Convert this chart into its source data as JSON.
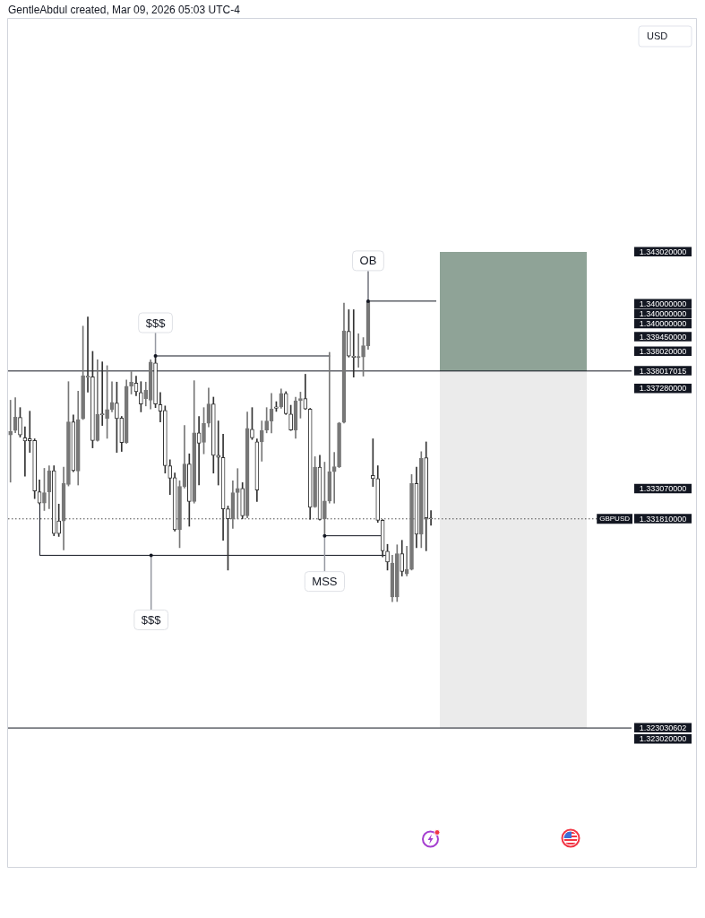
{
  "chart_data": {
    "type": "candlestick",
    "ylabel": "USD",
    "annotations": [
      "GentleAbdul created, Mar 09, 2026 05:03 UTC-4",
      "1.340000000",
      "1.340000000",
      "1.338020000",
      "1.323020000"
    ],
    "categories": [
      null,
      null,
      null,
      null,
      null,
      null,
      null,
      null,
      null,
      null,
      null,
      null,
      null,
      null,
      null,
      null,
      null,
      null,
      null,
      null,
      null,
      null,
      null,
      null,
      null,
      null,
      null,
      null,
      null,
      null,
      null,
      null,
      null,
      null,
      null,
      null,
      null,
      null,
      null,
      null,
      null,
      null,
      null,
      null,
      null,
      null,
      null,
      null,
      null,
      null,
      null,
      null,
      null,
      null,
      null,
      null,
      null,
      null,
      null,
      null,
      null,
      null,
      null,
      null,
      null,
      null,
      null,
      null,
      null,
      null,
      null,
      null,
      null,
      null,
      null,
      null,
      null,
      null,
      null,
      null,
      null,
      null,
      null,
      null,
      null,
      null,
      null,
      null,
      null,
      null,
      null,
      null,
      null,
      null,
      null,
      null,
      null,
      null,
      null,
      null,
      null,
      null,
      null,
      null,
      null,
      null,
      null,
      null,
      null,
      null,
      null,
      null,
      null,
      null,
      null,
      null,
      null,
      null,
      null,
      null,
      null,
      null,
      null,
      null,
      null,
      null,
      null,
      null,
      null
    ],
    "ohlc": [
      [
        1.33533,
        1.33679,
        1.33335,
        1.33548
      ],
      [
        1.33552,
        1.3369,
        1.33543,
        1.33608
      ],
      [
        1.33607,
        1.33648,
        1.33524,
        1.33533
      ],
      [
        1.33521,
        1.33567,
        1.3336,
        1.33508
      ],
      [
        1.33518,
        1.33633,
        1.3346,
        1.33509
      ],
      [
        1.3351,
        1.33517,
        1.33266,
        1.33298
      ],
      [
        1.33295,
        1.33344,
        1.33243,
        1.33247
      ],
      [
        1.33247,
        1.33393,
        1.33216,
        1.33291
      ],
      [
        1.33294,
        1.33404,
        1.33224,
        1.33383
      ],
      [
        1.33383,
        1.33404,
        1.3311,
        1.33119
      ],
      [
        1.33172,
        1.33243,
        1.33107,
        1.33119
      ],
      [
        1.33172,
        1.33398,
        1.33051,
        1.33329
      ],
      [
        1.33325,
        1.33757,
        1.33319,
        1.33588
      ],
      [
        1.33588,
        1.33617,
        1.33379,
        1.33384
      ],
      [
        1.33382,
        1.33717,
        1.33323,
        1.33598
      ],
      [
        1.33601,
        1.3399,
        1.33598,
        1.33782
      ],
      [
        1.3378,
        1.34028,
        1.33713,
        1.33776
      ],
      [
        1.33777,
        1.33884,
        1.33479,
        1.3351
      ],
      [
        1.3351,
        1.33849,
        1.33507,
        1.33619
      ],
      [
        1.3362,
        1.3384,
        1.33573,
        1.33618
      ],
      [
        1.33602,
        1.33824,
        1.33519,
        1.3364
      ],
      [
        1.3364,
        1.33757,
        1.3363,
        1.3367
      ],
      [
        1.33667,
        1.33755,
        1.3346,
        1.33602
      ],
      [
        1.33604,
        1.33611,
        1.33464,
        1.33501
      ],
      [
        1.33501,
        1.33764,
        1.33498,
        1.33738
      ],
      [
        1.33738,
        1.33799,
        1.33705,
        1.33755
      ],
      [
        1.33751,
        1.3378,
        1.33698,
        1.33715
      ],
      [
        1.33711,
        1.33757,
        1.3363,
        1.33663
      ],
      [
        1.33686,
        1.33755,
        1.33655,
        1.33721
      ],
      [
        1.33679,
        1.33849,
        1.33642,
        1.33839
      ],
      [
        1.33836,
        1.33865,
        1.33648,
        1.33663
      ],
      [
        1.33661,
        1.33711,
        1.33588,
        1.33633
      ],
      [
        1.33636,
        1.33655,
        1.33373,
        1.33404
      ],
      [
        1.33404,
        1.33429,
        1.33283,
        1.33352
      ],
      [
        1.33354,
        1.33374,
        1.3313,
        1.33135
      ],
      [
        1.33135,
        1.33341,
        1.3306,
        1.33317
      ],
      [
        1.33317,
        1.33573,
        1.3331,
        1.33411
      ],
      [
        1.33411,
        1.33454,
        1.3315,
        1.33254
      ],
      [
        1.33254,
        1.33761,
        1.33247,
        1.33542
      ],
      [
        1.33542,
        1.33611,
        1.33323,
        1.33498
      ],
      [
        1.33502,
        1.33648,
        1.33454,
        1.33582
      ],
      [
        1.33582,
        1.3373,
        1.33567,
        1.33663
      ],
      [
        1.33663,
        1.33692,
        1.33373,
        1.33448
      ],
      [
        1.33448,
        1.33592,
        1.33323,
        1.33439
      ],
      [
        1.33439,
        1.33536,
        1.33091,
        1.33223
      ],
      [
        1.33223,
        1.33235,
        1.32966,
        1.33181
      ],
      [
        1.33181,
        1.33341,
        1.33141,
        1.33291
      ],
      [
        1.33291,
        1.33392,
        1.33181,
        1.33309
      ],
      [
        1.33309,
        1.33333,
        1.33181,
        1.33194
      ],
      [
        1.33194,
        1.3363,
        1.33185,
        1.33561
      ],
      [
        1.33557,
        1.33648,
        1.33514,
        1.33521
      ],
      [
        1.33504,
        1.33517,
        1.33254,
        1.33302
      ],
      [
        1.33504,
        1.33592,
        1.33423,
        1.33551
      ],
      [
        1.33554,
        1.33648,
        1.33542,
        1.33592
      ],
      [
        1.33592,
        1.33708,
        1.33542,
        1.33642
      ],
      [
        1.33651,
        1.33673,
        1.33632,
        1.33645
      ],
      [
        1.33651,
        1.33726,
        1.33645,
        1.33708
      ],
      [
        1.33708,
        1.33715,
        1.33619,
        1.33623
      ],
      [
        1.33621,
        1.33658,
        1.33552,
        1.33554
      ],
      [
        1.33554,
        1.33692,
        1.33519,
        1.33677
      ],
      [
        1.33677,
        1.33713,
        1.33604,
        1.33686
      ],
      [
        1.33686,
        1.33788,
        1.3364,
        1.33642
      ],
      [
        1.33642,
        1.33645,
        1.33179,
        1.33229
      ],
      [
        1.33231,
        1.33442,
        1.33229,
        1.33398
      ],
      [
        1.33398,
        1.33448,
        1.33176,
        1.33179
      ],
      [
        1.33181,
        1.33419,
        1.3311,
        1.33256
      ],
      [
        1.33256,
        1.3388,
        1.33247,
        1.33379
      ],
      [
        1.33379,
        1.3346,
        1.33247,
        1.334
      ],
      [
        1.334,
        1.33586,
        1.33396,
        1.33583
      ],
      [
        1.33586,
        1.34087,
        1.33583,
        1.3397
      ],
      [
        1.33968,
        1.34059,
        1.3386,
        1.33864
      ],
      [
        1.33864,
        1.34059,
        1.33776,
        1.33859
      ],
      [
        1.33859,
        1.33958,
        1.33817,
        1.33861
      ],
      [
        1.33861,
        1.33942,
        1.3378,
        1.33908
      ],
      [
        1.33908,
        1.34218,
        1.33893,
        1.34095
      ],
      [
        1.33363,
        1.33517,
        1.33317,
        1.3335
      ],
      [
        1.3335,
        1.33404,
        1.33166,
        1.33175
      ],
      [
        1.33175,
        1.33178,
        1.33021,
        1.33047
      ],
      [
        1.33045,
        1.33074,
        1.32966,
        1.33
      ],
      [
        1.32853,
        1.33028,
        1.32833,
        1.32995
      ],
      [
        1.32853,
        1.33072,
        1.32834,
        1.33035
      ],
      [
        1.33035,
        1.33091,
        1.32941,
        1.3296
      ],
      [
        1.3295,
        1.33066,
        1.32941,
        1.32969
      ],
      [
        1.32969,
        1.33367,
        1.32966,
        1.33329
      ],
      [
        1.33329,
        1.33398,
        1.3306,
        1.33116
      ],
      [
        1.33116,
        1.33463,
        1.3306,
        1.33435
      ],
      [
        1.33438,
        1.33504,
        1.33047,
        1.33185
      ],
      [
        1.33185,
        1.33216,
        1.33154,
        1.33181
      ],
      null,
      null,
      null,
      null,
      null,
      null,
      null,
      null,
      null,
      null,
      null,
      null,
      null,
      null,
      null,
      null,
      null,
      null,
      null,
      null,
      null,
      null,
      null,
      null,
      null,
      null,
      null,
      null,
      null,
      null,
      null,
      null,
      null,
      null,
      null,
      null,
      null,
      null,
      null,
      null,
      null
    ],
    "colors": [
      "#777777",
      "#777777",
      "#333333",
      "#333333",
      "#333333",
      "#333333",
      "#333333",
      "#777777",
      "#777777",
      "#333333",
      "#333333",
      "#777777",
      "#777777",
      "#333333",
      "#777777",
      "#777777",
      "#333333",
      "#333333",
      "#777777",
      "#333333",
      "#777777",
      "#777777",
      "#333333",
      "#333333",
      "#777777",
      "#777777",
      "#333333",
      "#333333",
      "#777777",
      "#777777",
      "#333333",
      "#333333",
      "#333333",
      "#333333",
      "#333333",
      "#777777",
      "#777777",
      "#333333",
      "#777777",
      "#333333",
      "#777777",
      "#777777",
      "#333333",
      "#333333",
      "#333333",
      "#333333",
      "#777777",
      "#777777",
      "#333333",
      "#777777",
      "#333333",
      "#333333",
      "#777777",
      "#777777",
      "#777777",
      "#333333",
      "#777777",
      "#333333",
      "#333333",
      "#777777",
      "#777777",
      "#333333",
      "#333333",
      "#777777",
      "#333333",
      "#777777",
      "#777777",
      "#777777",
      "#777777",
      "#777777",
      "#333333",
      "#333333",
      "#777777",
      "#777777",
      "#777777",
      "#333333",
      "#333333",
      "#333333",
      "#333333",
      "#777777",
      "#777777",
      "#333333",
      "#777777",
      "#777777",
      "#333333",
      "#777777",
      "#333333",
      "#333333",
      null,
      null,
      null,
      null,
      null,
      null,
      null,
      null,
      null,
      null,
      null,
      null,
      null,
      null,
      null,
      null,
      null,
      null,
      null,
      null,
      null,
      null,
      null,
      null,
      null,
      null,
      null,
      null,
      null,
      null,
      null,
      null,
      null,
      null,
      null,
      null,
      null,
      null,
      null,
      null,
      null
    ],
    "ylim": [
      1.3172,
      1.3528
    ],
    "yticks": [
      {
        "value": 1.34302,
        "label": "1.343020000"
      },
      {
        "value": 1.34,
        "label": "1.340000000"
      },
      {
        "value": 1.33945,
        "label": "1.339450000"
      },
      {
        "value": 1.338017015,
        "label": "1.338017015"
      },
      {
        "value": 1.33728,
        "label": "1.337280000"
      },
      {
        "value": 1.33307,
        "label": "1.333070000"
      },
      {
        "value": 1.33181,
        "label": "1.331810000"
      },
      {
        "value": 1.323030602,
        "label": "1.323030602"
      }
    ],
    "ref_lines": [
      {
        "axis": "y",
        "value": 1.338017015,
        "color": "#131722"
      },
      {
        "axis": "y",
        "value": 1.323030602,
        "color": "#131722"
      },
      {
        "axis": "y",
        "value": 1.33181,
        "label": "GBPUSD",
        "color": "#4a4a4a",
        "line_style": "dotted"
      },
      {
        "axis": "y",
        "value": 1.33865,
        "label": "$$$",
        "color": "#131722"
      },
      {
        "axis": "y",
        "value": 1.33028,
        "label": "$$$",
        "color": "#131722"
      },
      {
        "axis": "y",
        "value": 1.3311,
        "label": "MSS",
        "color": "#131722"
      },
      {
        "axis": "y",
        "value": 1.34095,
        "label": "OB",
        "color": "#131722"
      }
    ],
    "bands": [
      {
        "axis": "y",
        "from": 1.338017015,
        "to": 1.34302,
        "color": "#8fa397"
      },
      {
        "axis": "y",
        "from": 1.323030602,
        "to": 1.338017015,
        "color": "#ebebeb"
      }
    ],
    "tick_labels": "y"
  }
}
